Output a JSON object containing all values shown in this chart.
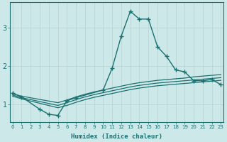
{
  "xlabel": "Humidex (Indice chaleur)",
  "background_color": "#cce8e8",
  "grid_color": "#c8d8d8",
  "line_color": "#1a7070",
  "x_ticks": [
    0,
    1,
    2,
    3,
    4,
    5,
    6,
    7,
    8,
    9,
    10,
    11,
    12,
    13,
    14,
    15,
    16,
    17,
    18,
    19,
    20,
    21,
    22,
    23
  ],
  "y_ticks": [
    1,
    2,
    3
  ],
  "xlim": [
    -0.3,
    23.3
  ],
  "ylim": [
    0.55,
    3.65
  ],
  "main_series": {
    "x": [
      0,
      1,
      3,
      4,
      5,
      6,
      7,
      10,
      11,
      12,
      13,
      14,
      15,
      16,
      17,
      18,
      19,
      20,
      21,
      22,
      23
    ],
    "y": [
      1.3,
      1.2,
      0.88,
      0.75,
      0.72,
      1.1,
      1.18,
      1.38,
      1.95,
      2.78,
      3.42,
      3.22,
      3.22,
      2.5,
      2.25,
      1.9,
      1.85,
      1.62,
      1.62,
      1.65,
      1.52
    ]
  },
  "band_lines": [
    {
      "x": [
        0,
        1,
        5,
        6,
        7,
        8,
        9,
        10,
        11,
        12,
        13,
        14,
        15,
        16,
        17,
        18,
        19,
        20,
        21,
        22,
        23
      ],
      "y": [
        1.28,
        1.22,
        1.05,
        1.12,
        1.2,
        1.27,
        1.33,
        1.38,
        1.43,
        1.48,
        1.53,
        1.57,
        1.6,
        1.63,
        1.65,
        1.67,
        1.69,
        1.72,
        1.74,
        1.76,
        1.78
      ]
    },
    {
      "x": [
        0,
        1,
        5,
        6,
        7,
        8,
        9,
        10,
        11,
        12,
        13,
        14,
        15,
        16,
        17,
        18,
        19,
        20,
        21,
        22,
        23
      ],
      "y": [
        1.25,
        1.18,
        0.98,
        1.05,
        1.13,
        1.2,
        1.26,
        1.31,
        1.36,
        1.41,
        1.46,
        1.5,
        1.53,
        1.56,
        1.58,
        1.6,
        1.62,
        1.64,
        1.66,
        1.68,
        1.7
      ]
    },
    {
      "x": [
        0,
        1,
        5,
        6,
        7,
        8,
        9,
        10,
        11,
        12,
        13,
        14,
        15,
        16,
        17,
        18,
        19,
        20,
        21,
        22,
        23
      ],
      "y": [
        1.22,
        1.15,
        0.92,
        0.98,
        1.06,
        1.13,
        1.19,
        1.24,
        1.29,
        1.34,
        1.39,
        1.43,
        1.46,
        1.49,
        1.51,
        1.53,
        1.55,
        1.57,
        1.59,
        1.61,
        1.63
      ]
    }
  ]
}
